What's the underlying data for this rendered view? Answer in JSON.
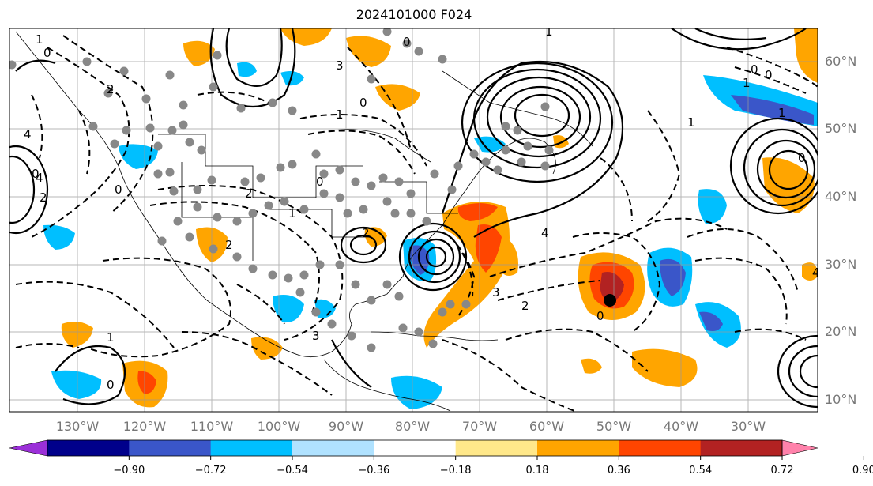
{
  "title": "2024101000 F024",
  "lat_labels": [
    "60°N",
    "50°N",
    "40°N",
    "30°N",
    "20°N",
    "10°N"
  ],
  "lon_labels": [
    "130°W",
    "120°W",
    "110°W",
    "100°W",
    "90°W",
    "80°W",
    "70°W",
    "60°W",
    "50°W",
    "40°W",
    "30°W"
  ],
  "colorbar": {
    "ticks": [
      "−0.90",
      "−0.72",
      "−0.54",
      "−0.36",
      "−0.18",
      "0.18",
      "0.36",
      "0.54",
      "0.72",
      "0.90"
    ],
    "colors": [
      "#9b30d8",
      "#00008b",
      "#3a56c9",
      "#00bfff",
      "#b0e2ff",
      "#ffffff",
      "#ffe88a",
      "#ffa500",
      "#ff4500",
      "#b22222",
      "#ff82ab"
    ]
  },
  "contour_labels": [
    "1",
    "0",
    "2",
    "4",
    "0",
    "2",
    "4",
    "0",
    "1",
    "0",
    "3",
    "0",
    "2",
    "1",
    "0",
    "1",
    "3",
    "2",
    "4",
    "1",
    "0",
    "3",
    "0",
    "2",
    "1",
    "0",
    "1",
    "0",
    "1",
    "0",
    "4",
    "2"
  ],
  "colors": {
    "axis_label": "#777777",
    "contour": "#000000",
    "grid": "#999999"
  }
}
